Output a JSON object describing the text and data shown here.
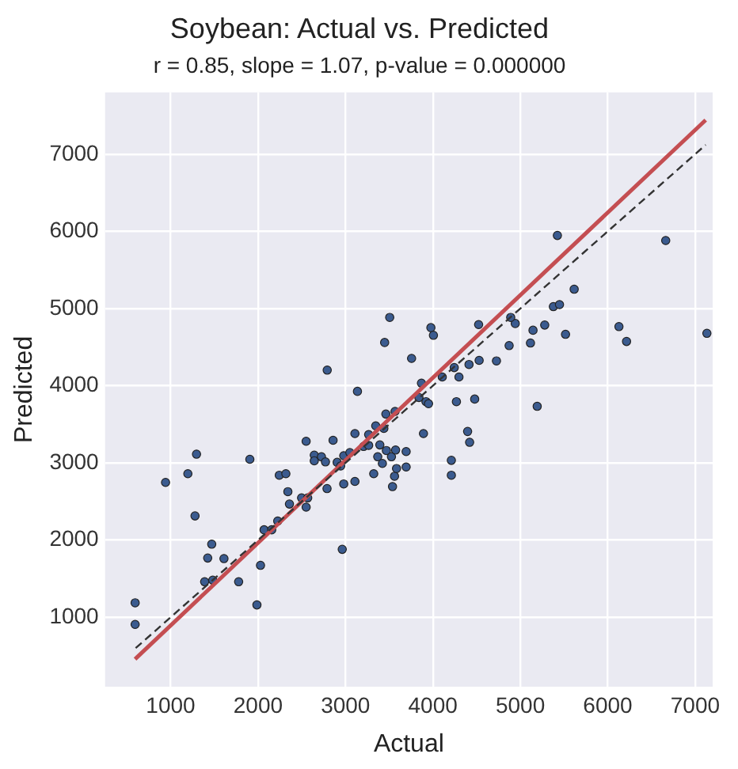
{
  "chart_data": {
    "type": "scatter",
    "title": "Soybean: Actual vs. Predicted",
    "subtitle": "r = 0.85, slope = 1.07, p-value = 0.000000",
    "xlabel": "Actual",
    "ylabel": "Predicted",
    "xlim": [
      250,
      7200
    ],
    "ylim": [
      100,
      7800
    ],
    "xticks": [
      1000,
      2000,
      3000,
      4000,
      5000,
      6000,
      7000
    ],
    "yticks": [
      1000,
      2000,
      3000,
      4000,
      5000,
      6000,
      7000
    ],
    "grid": true,
    "legend": false,
    "series": [
      {
        "marker": "circle",
        "color": "#3b5b8f",
        "x": [
          594,
          594,
          942,
          1197,
          1296,
          1279,
          1424,
          1470,
          1389,
          1482,
          1610,
          1778,
          1906,
          1987,
          2028,
          2069,
          2156,
          2225,
          2243,
          2318,
          2341,
          2359,
          2498,
          2550,
          2550,
          2568,
          2643,
          2643,
          2725,
          2771,
          2789,
          2858,
          2905,
          2945,
          2980,
          2980,
          2963,
          3050,
          3108,
          3108,
          3137,
          3207,
          3265,
          3265,
          3323,
          3346,
          3369,
          3393,
          3422,
          3439,
          3462,
          3468,
          3526,
          3538,
          3561,
          3573,
          3584,
          3567,
          3694,
          3694,
          3840,
          3869,
          3892,
          3921,
          3950,
          4107,
          4269,
          4298,
          4211,
          4211,
          4397,
          4420,
          4478,
          5193,
          5424,
          6663,
          5616,
          5378,
          5448,
          5279,
          5145,
          5517,
          5116,
          6128,
          6215,
          7134,
          4942,
          4890,
          4872,
          4727,
          4523,
          4529,
          4413,
          4244,
          3977,
          4006,
          3506,
          3448,
          3756,
          2791
        ],
        "values": [
          1187,
          907,
          2747,
          2860,
          3113,
          2313,
          1767,
          1947,
          1460,
          1480,
          1760,
          1460,
          3047,
          1160,
          1673,
          2133,
          2133,
          2247,
          2840,
          2860,
          2627,
          2467,
          2547,
          2427,
          3280,
          2547,
          3100,
          3027,
          3080,
          3013,
          2667,
          3293,
          3007,
          2960,
          3093,
          2727,
          1880,
          3133,
          3380,
          2760,
          3927,
          3213,
          3367,
          3227,
          2860,
          3480,
          3080,
          3233,
          2993,
          3447,
          3633,
          3160,
          3080,
          2693,
          2827,
          3167,
          2927,
          3667,
          3147,
          2947,
          3847,
          4033,
          3380,
          3793,
          3767,
          4113,
          3793,
          4113,
          3033,
          2840,
          3407,
          3267,
          3827,
          3733,
          5947,
          5881,
          5250,
          5025,
          5051,
          4786,
          4719,
          4666,
          4553,
          4766,
          4573,
          4679,
          4806,
          4885,
          4520,
          4321,
          4792,
          4328,
          4275,
          4235,
          4752,
          4653,
          4885,
          4560,
          4354,
          4202
        ]
      },
      {
        "type": "line",
        "marker": "none",
        "color": "#333333",
        "line_style": "dashed",
        "x": [
          600,
          7120
        ],
        "values": [
          600,
          7120
        ]
      },
      {
        "type": "line",
        "marker": "none",
        "color": "#c44e52",
        "line_style": "solid",
        "x": [
          593,
          7120
        ],
        "values": [
          458,
          7442
        ]
      }
    ]
  }
}
